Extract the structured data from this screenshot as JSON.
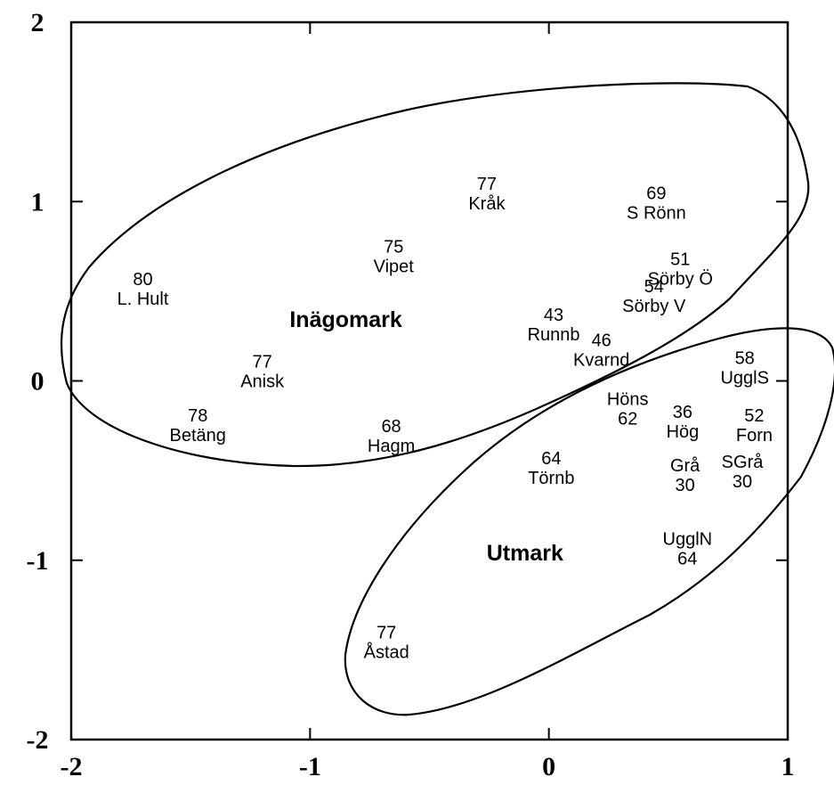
{
  "chart_data": {
    "type": "scatter",
    "title": "",
    "xlabel": "",
    "ylabel": "",
    "xlim": [
      -2,
      1
    ],
    "ylim": [
      -2,
      2
    ],
    "x_ticks": [
      -2,
      -1,
      0,
      1
    ],
    "y_ticks": [
      -2,
      -1,
      0,
      1,
      2
    ],
    "x_tick_labels": [
      "-2",
      "-1",
      "0",
      "1"
    ],
    "y_tick_labels": [
      "-2",
      "-1",
      "0",
      "1",
      "2"
    ],
    "grid": false,
    "points": [
      {
        "name": "Kråk",
        "value": "77",
        "x": -0.26,
        "y": 1.05,
        "value_first": true
      },
      {
        "name": "S Rönn",
        "value": "69",
        "x": 0.45,
        "y": 1.0,
        "value_first": true
      },
      {
        "name": "L. Hult",
        "value": "80",
        "x": -1.7,
        "y": 0.52,
        "value_first": true
      },
      {
        "name": "Vipet",
        "value": "75",
        "x": -0.65,
        "y": 0.7,
        "value_first": true
      },
      {
        "name": "Sörby Ö",
        "value": "51",
        "x": 0.55,
        "y": 0.63,
        "value_first": true
      },
      {
        "name": "Sörby V",
        "value": "54",
        "x": 0.44,
        "y": 0.48,
        "value_first": true
      },
      {
        "name": "Runnb",
        "value": "43",
        "x": 0.02,
        "y": 0.32,
        "value_first": true
      },
      {
        "name": "Kvarnd",
        "value": "46",
        "x": 0.22,
        "y": 0.18,
        "value_first": true
      },
      {
        "name": "UgglS",
        "value": "58",
        "x": 0.82,
        "y": 0.08,
        "value_first": true
      },
      {
        "name": "Anisk",
        "value": "77",
        "x": -1.2,
        "y": 0.06,
        "value_first": true
      },
      {
        "name": "Höns",
        "value": "62",
        "x": 0.33,
        "y": -0.15,
        "value_first": false
      },
      {
        "name": "Hög",
        "value": "36",
        "x": 0.56,
        "y": -0.22,
        "value_first": true
      },
      {
        "name": "Forn",
        "value": "52",
        "x": 0.86,
        "y": -0.24,
        "value_first": true
      },
      {
        "name": "Betäng",
        "value": "78",
        "x": -1.47,
        "y": -0.24,
        "value_first": true
      },
      {
        "name": "Hagm",
        "value": "68",
        "x": -0.66,
        "y": -0.3,
        "value_first": true
      },
      {
        "name": "Törnb",
        "value": "64",
        "x": 0.01,
        "y": -0.48,
        "value_first": true
      },
      {
        "name": "Grå",
        "value": "30",
        "x": 0.57,
        "y": -0.52,
        "value_first": false
      },
      {
        "name": "SGrå",
        "value": "30",
        "x": 0.81,
        "y": -0.5,
        "value_first": false
      },
      {
        "name": "UgglN",
        "value": "64",
        "x": 0.58,
        "y": -0.93,
        "value_first": false
      },
      {
        "name": "Åstad",
        "value": "77",
        "x": -0.68,
        "y": -1.45,
        "value_first": true
      }
    ],
    "groups": [
      {
        "name": "Inägomark",
        "label_x": -0.85,
        "label_y": 0.3
      },
      {
        "name": "Utmark",
        "label_x": -0.1,
        "label_y": -1.0
      }
    ]
  }
}
